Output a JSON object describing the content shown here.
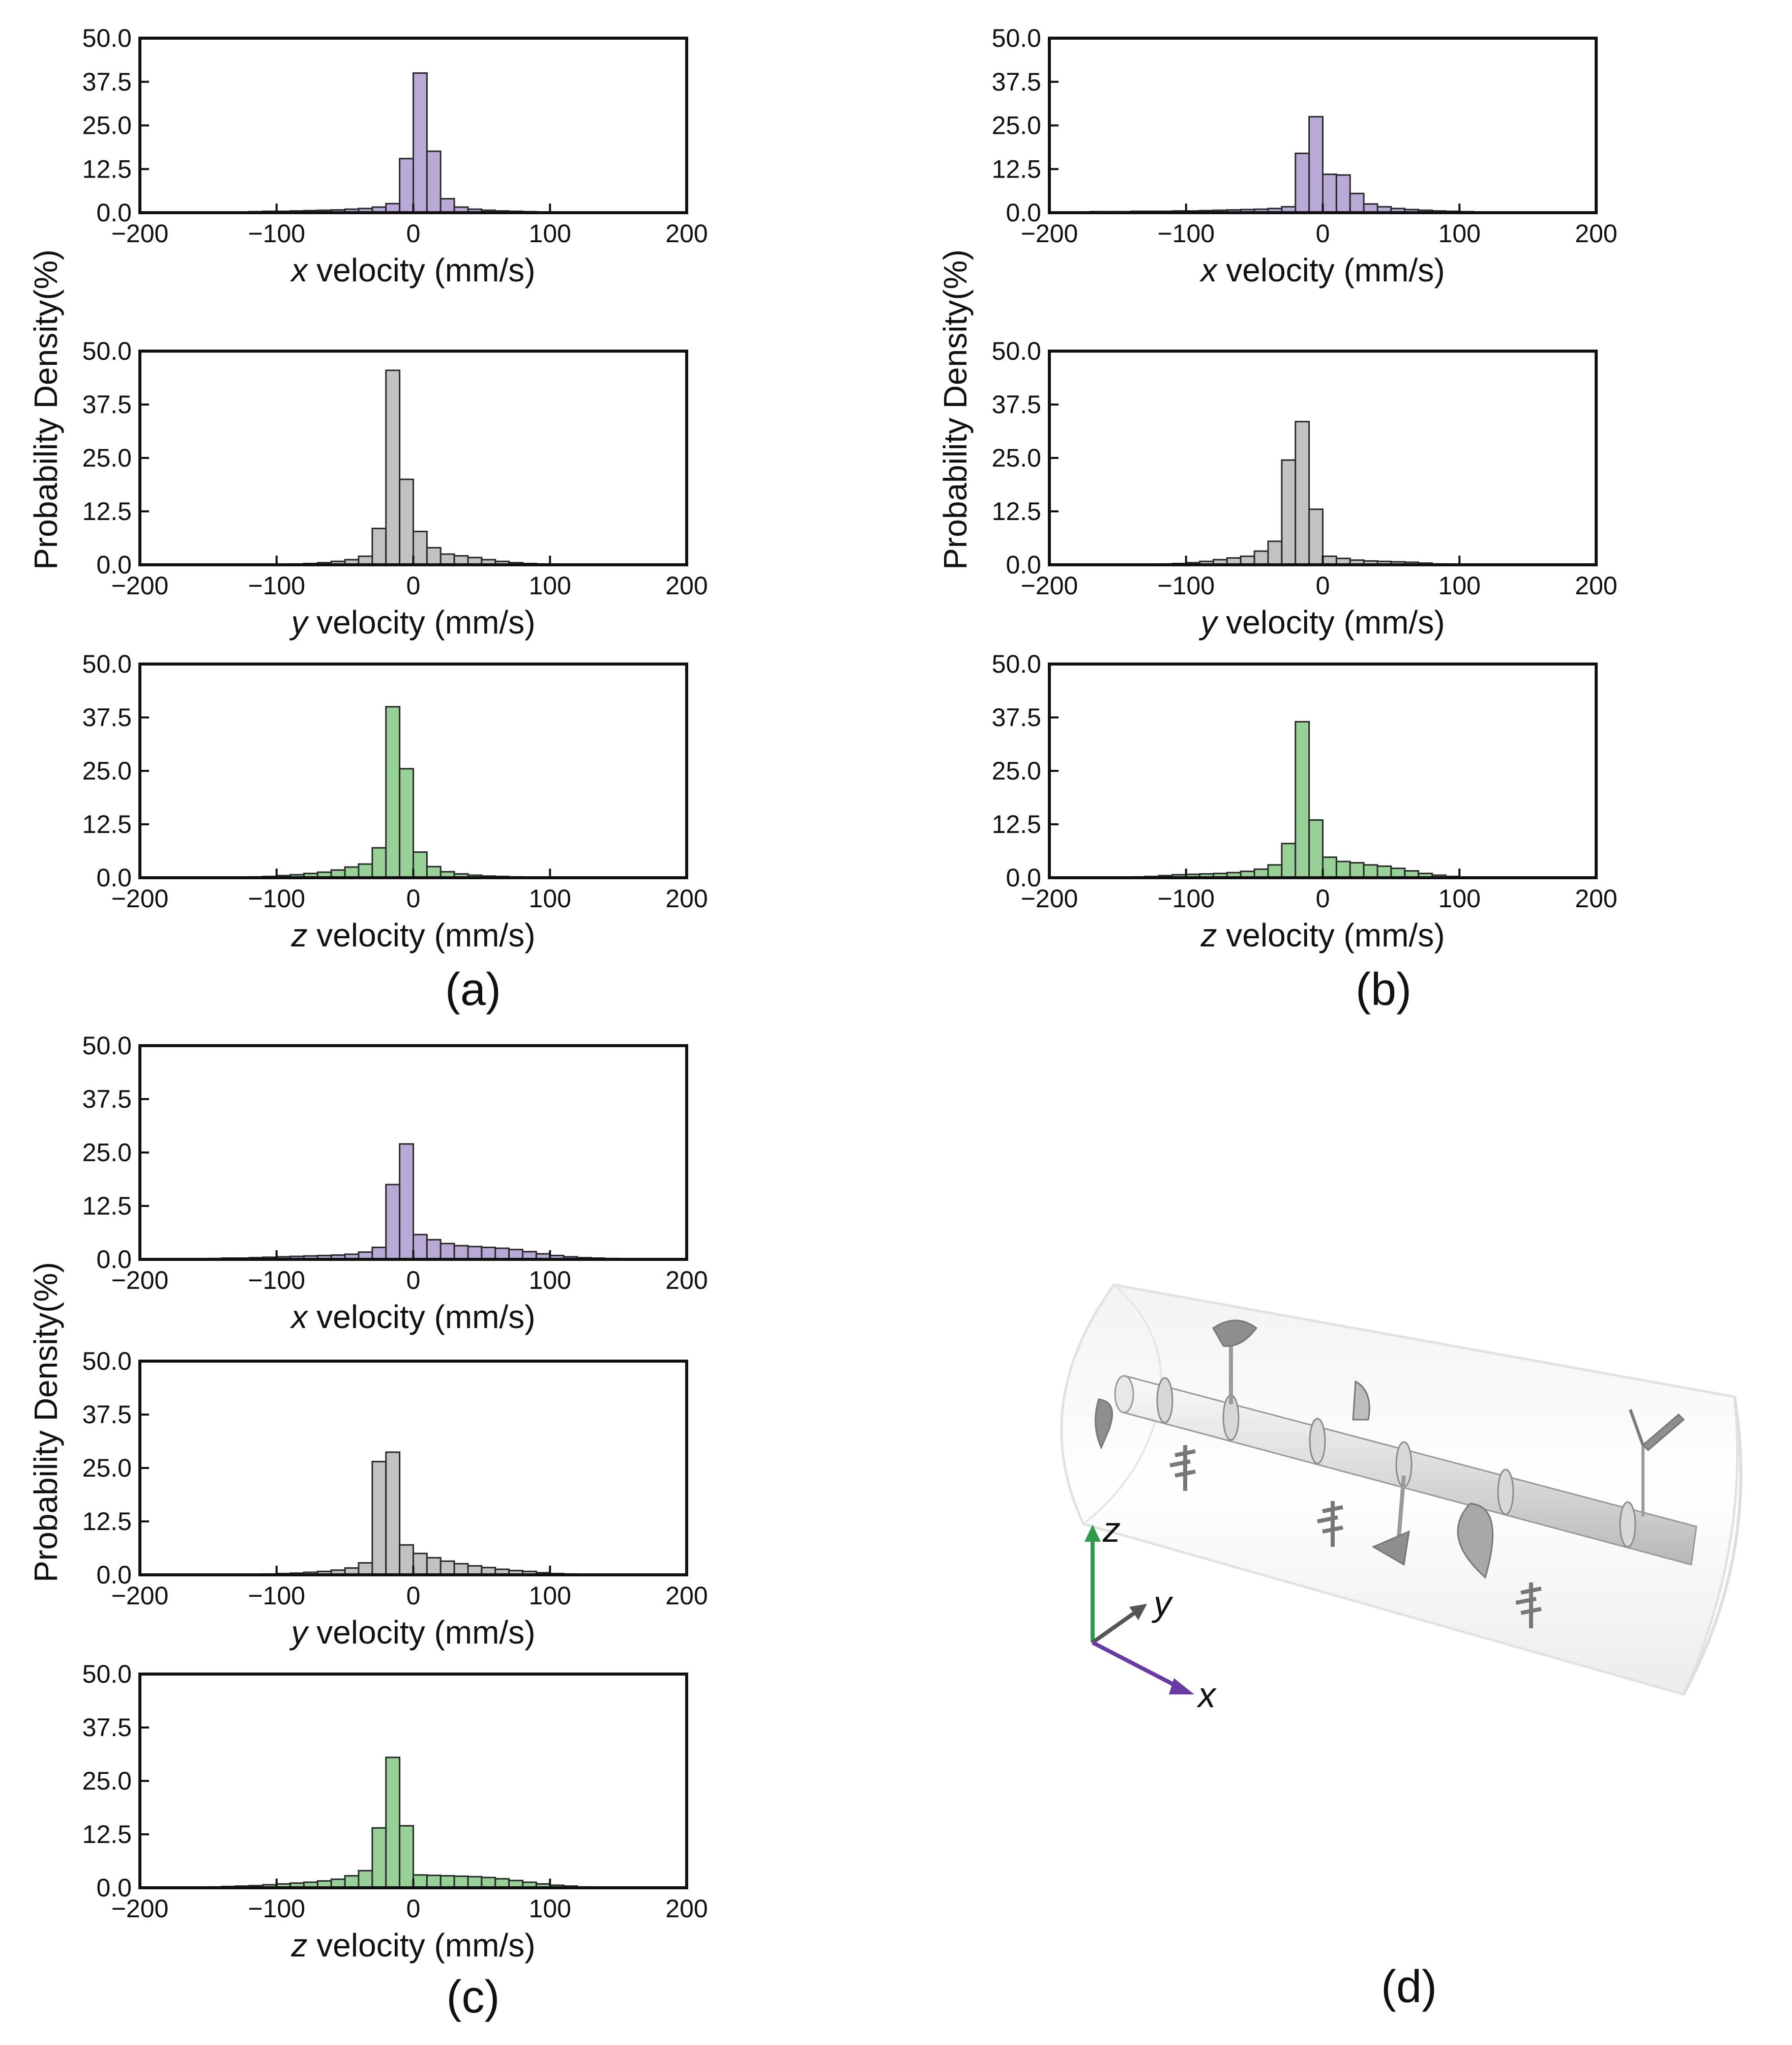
{
  "figure": {
    "panel_labels": [
      "(a)",
      "(b)",
      "(c)",
      "(d)"
    ],
    "y_axis_label": "Probability Density(%)",
    "colors": {
      "x": "#b8a9d6",
      "y": "#c2c2c2",
      "z": "#97d197",
      "edge": "#2a2a2a"
    },
    "diagram": {
      "axis_labels": [
        "z",
        "y",
        "x"
      ],
      "axis_colors": {
        "z": "#2e9a4a",
        "y": "#555555",
        "x": "#6a3aa3"
      },
      "icons": [
        "tube-icon",
        "shaft-icon",
        "impeller-blade-icon",
        "coordinate-axes-icon"
      ]
    }
  },
  "chart_data": [
    {
      "id": "a-x",
      "panel": "(a)",
      "type": "bar",
      "component": "x",
      "xlabel_var": "x",
      "xlabel_rest": " velocity (mm/s)",
      "xlim": [
        -200,
        200
      ],
      "ylim": [
        0,
        50
      ],
      "xticks": [
        "−200",
        "−100",
        "0",
        "100",
        "200"
      ],
      "yticks": [
        "0.0",
        "12.5",
        "25.0",
        "37.5",
        "50.0"
      ],
      "bin_width": 10,
      "bin_start": -160,
      "values": [
        0.1,
        0.1,
        0.2,
        0.2,
        0.3,
        0.4,
        0.4,
        0.5,
        0.6,
        0.7,
        0.8,
        1.0,
        1.2,
        1.6,
        2.6,
        15.5,
        40.0,
        17.6,
        4.0,
        1.6,
        1.0,
        0.7,
        0.5,
        0.4,
        0.3,
        0.2,
        0.15,
        0.1,
        0.1,
        0.1
      ]
    },
    {
      "id": "a-y",
      "panel": "(a)",
      "type": "bar",
      "component": "y",
      "xlabel_var": "y",
      "xlabel_rest": " velocity (mm/s)",
      "xlim": [
        -200,
        200
      ],
      "ylim": [
        0,
        50
      ],
      "xticks": [
        "−200",
        "−100",
        "0",
        "100",
        "200"
      ],
      "yticks": [
        "0.0",
        "12.5",
        "25.0",
        "37.5",
        "50.0"
      ],
      "bin_width": 10,
      "bin_start": -100,
      "values": [
        0.1,
        0.2,
        0.3,
        0.5,
        0.8,
        1.2,
        2.0,
        8.5,
        45.5,
        20.0,
        7.8,
        4.0,
        2.5,
        2.1,
        1.7,
        1.2,
        0.8,
        0.5,
        0.3,
        0.2
      ]
    },
    {
      "id": "a-z",
      "panel": "(a)",
      "type": "bar",
      "component": "z",
      "xlabel_var": "z",
      "xlabel_rest": " velocity (mm/s)",
      "xlim": [
        -200,
        200
      ],
      "ylim": [
        0,
        50
      ],
      "xticks": [
        "−200",
        "−100",
        "0",
        "100",
        "200"
      ],
      "yticks": [
        "0.0",
        "12.5",
        "25.0",
        "37.5",
        "50.0"
      ],
      "bin_width": 10,
      "bin_start": -120,
      "values": [
        0.2,
        0.3,
        0.5,
        0.7,
        1.0,
        1.3,
        1.8,
        2.5,
        3.2,
        7.0,
        40.0,
        25.5,
        6.0,
        2.6,
        1.4,
        0.9,
        0.6,
        0.4,
        0.3,
        0.2,
        0.1,
        0.1
      ]
    },
    {
      "id": "b-x",
      "panel": "(b)",
      "type": "bar",
      "component": "x",
      "xlabel_var": "x",
      "xlabel_rest": " velocity (mm/s)",
      "xlim": [
        -200,
        200
      ],
      "ylim": [
        0,
        50
      ],
      "xticks": [
        "−200",
        "−100",
        "0",
        "100",
        "200"
      ],
      "yticks": [
        "0.0",
        "12.5",
        "25.0",
        "37.5",
        "50.0"
      ],
      "bin_width": 10,
      "bin_start": -190,
      "values": [
        0.2,
        0.2,
        0.3,
        0.3,
        0.3,
        0.4,
        0.4,
        0.4,
        0.5,
        0.5,
        0.6,
        0.7,
        0.8,
        0.9,
        1.0,
        1.2,
        1.7,
        17.0,
        27.5,
        11.0,
        10.8,
        5.5,
        2.5,
        1.7,
        1.2,
        0.9,
        0.7,
        0.5,
        0.4,
        0.3,
        0.2,
        0.2,
        0.1,
        0.1,
        0.1
      ]
    },
    {
      "id": "b-y",
      "panel": "(b)",
      "type": "bar",
      "component": "y",
      "xlabel_var": "y",
      "xlabel_rest": " velocity (mm/s)",
      "xlim": [
        -200,
        200
      ],
      "ylim": [
        0,
        50
      ],
      "xticks": [
        "−200",
        "−100",
        "0",
        "100",
        "200"
      ],
      "yticks": [
        "0.0",
        "12.5",
        "25.0",
        "37.5",
        "50.0"
      ],
      "bin_width": 10,
      "bin_start": -120,
      "values": [
        0.2,
        0.3,
        0.5,
        0.8,
        1.2,
        1.6,
        2.0,
        3.2,
        5.5,
        24.5,
        33.5,
        13.0,
        2.0,
        1.5,
        1.1,
        0.9,
        0.8,
        0.7,
        0.6,
        0.4,
        0.2,
        0.1
      ]
    },
    {
      "id": "b-z",
      "panel": "(b)",
      "type": "bar",
      "component": "z",
      "xlabel_var": "z",
      "xlabel_rest": " velocity (mm/s)",
      "xlim": [
        -200,
        200
      ],
      "ylim": [
        0,
        50
      ],
      "xticks": [
        "−200",
        "−100",
        "0",
        "100",
        "200"
      ],
      "yticks": [
        "0.0",
        "12.5",
        "25.0",
        "37.5",
        "50.0"
      ],
      "bin_width": 10,
      "bin_start": -150,
      "values": [
        0.1,
        0.2,
        0.3,
        0.5,
        0.7,
        0.8,
        0.9,
        1.0,
        1.2,
        1.5,
        2.0,
        3.0,
        8.0,
        36.5,
        13.5,
        4.8,
        3.8,
        3.5,
        3.0,
        2.7,
        2.2,
        1.6,
        1.0,
        0.6,
        0.3
      ]
    },
    {
      "id": "c-x",
      "panel": "(c)",
      "type": "bar",
      "component": "x",
      "xlabel_var": "x",
      "xlabel_rest": " velocity (mm/s)",
      "xlim": [
        -200,
        200
      ],
      "ylim": [
        0,
        50
      ],
      "xticks": [
        "−200",
        "−100",
        "0",
        "100",
        "200"
      ],
      "yticks": [
        "0.0",
        "12.5",
        "25.0",
        "37.5",
        "50.0"
      ],
      "bin_width": 10,
      "bin_start": -150,
      "values": [
        0.2,
        0.3,
        0.3,
        0.4,
        0.5,
        0.6,
        0.7,
        0.8,
        0.9,
        1.0,
        1.2,
        1.7,
        2.8,
        17.5,
        27.0,
        5.8,
        4.6,
        3.7,
        3.2,
        3.0,
        2.8,
        2.6,
        2.3,
        1.8,
        1.3,
        0.9,
        0.6,
        0.4,
        0.3,
        0.2,
        0.1
      ]
    },
    {
      "id": "c-y",
      "panel": "(c)",
      "type": "bar",
      "component": "y",
      "xlabel_var": "y",
      "xlabel_rest": " velocity (mm/s)",
      "xlim": [
        -200,
        200
      ],
      "ylim": [
        0,
        50
      ],
      "xticks": [
        "−200",
        "−100",
        "0",
        "100",
        "200"
      ],
      "yticks": [
        "0.0",
        "12.5",
        "25.0",
        "37.5",
        "50.0"
      ],
      "bin_width": 10,
      "bin_start": -110,
      "values": [
        0.2,
        0.3,
        0.4,
        0.6,
        0.8,
        1.1,
        1.6,
        2.8,
        26.5,
        28.7,
        7.0,
        5.0,
        4.0,
        3.2,
        2.6,
        2.1,
        1.7,
        1.3,
        1.0,
        0.8,
        0.5,
        0.3,
        0.2
      ]
    },
    {
      "id": "c-z",
      "panel": "(c)",
      "type": "bar",
      "component": "z",
      "xlabel_var": "z",
      "xlabel_rest": " velocity (mm/s)",
      "xlim": [
        -200,
        200
      ],
      "ylim": [
        0,
        50
      ],
      "xticks": [
        "−200",
        "−100",
        "0",
        "100",
        "200"
      ],
      "yticks": [
        "0.0",
        "12.5",
        "25.0",
        "37.5",
        "50.0"
      ],
      "bin_width": 10,
      "bin_start": -160,
      "values": [
        0.1,
        0.2,
        0.3,
        0.4,
        0.5,
        0.7,
        0.9,
        1.1,
        1.3,
        1.6,
        2.0,
        2.8,
        4.0,
        14.0,
        30.5,
        14.5,
        3.0,
        2.9,
        2.8,
        2.7,
        2.6,
        2.4,
        2.1,
        1.7,
        1.3,
        0.9,
        0.6,
        0.4,
        0.2
      ]
    }
  ]
}
